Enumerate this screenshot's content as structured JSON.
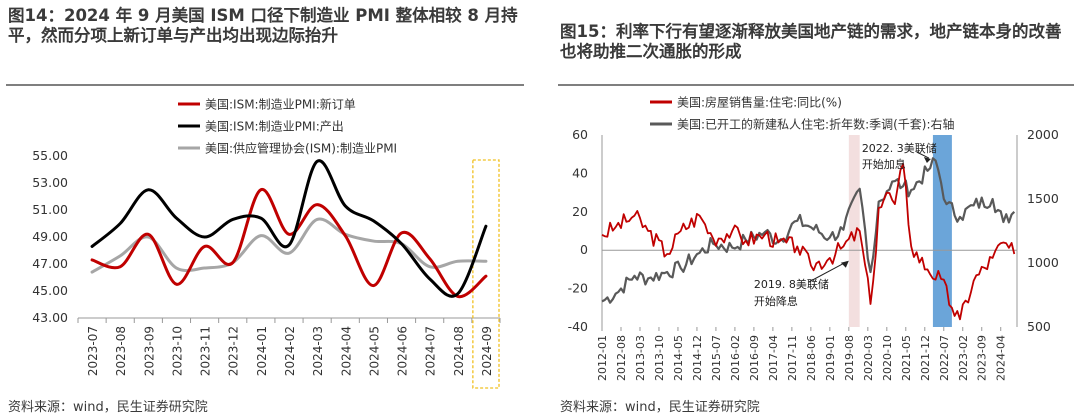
{
  "charts": [
    {
      "title": "图14：2024 年 9 月美国 ISM 口径下制造业 PMI 整体相较 8 月持平，然而分项上新订单与产出均出现边际抬升",
      "source": "资料来源：wind，民生证券研究院",
      "chart_data": {
        "type": "line",
        "categories": [
          "2023-07",
          "2023-08",
          "2023-09",
          "2023-10",
          "2023-11",
          "2023-12",
          "2024-01",
          "2024-02",
          "2024-03",
          "2024-04",
          "2024-05",
          "2024-06",
          "2024-07",
          "2024-08",
          "2024-09"
        ],
        "y_ticks": [
          "55.00",
          "53.00",
          "51.00",
          "49.00",
          "47.00",
          "45.00",
          "43.00"
        ],
        "ylim": [
          43,
          55
        ],
        "legend": "top-center",
        "highlight_category": "2024-09",
        "series": [
          {
            "name": "美国:ISM:制造业PMI:新订单",
            "color": "#c00000",
            "values": [
              47.3,
              46.8,
              49.2,
              45.5,
              48.3,
              47.1,
              52.5,
              49.2,
              51.4,
              49.1,
              45.4,
              49.3,
              47.4,
              44.6,
              46.1
            ]
          },
          {
            "name": "美国:ISM:制造业PMI:产出",
            "color": "#000000",
            "values": [
              48.3,
              50.0,
              52.5,
              50.4,
              49.0,
              50.3,
              50.4,
              48.4,
              54.6,
              51.3,
              50.2,
              48.5,
              45.9,
              44.8,
              49.8
            ]
          },
          {
            "name": "美国:供应管理协会(ISM):制造业PMI",
            "color": "#a6a6a6",
            "values": [
              46.4,
              47.6,
              49.0,
              46.7,
              46.7,
              47.1,
              49.1,
              47.8,
              50.3,
              49.2,
              48.7,
              48.5,
              46.8,
              47.2,
              47.2
            ]
          }
        ]
      }
    },
    {
      "title": "图15：利率下行有望逐渐释放美国地产链的需求，地产链本身的改善也将助推二次通胀的形成",
      "source": "资料来源：wind，民生证券研究院",
      "chart_data": {
        "type": "line",
        "x_ticks": [
          "2012-01",
          "2012-08",
          "2013-03",
          "2013-10",
          "2014-05",
          "2014-12",
          "2015-07",
          "2016-02",
          "2016-09",
          "2017-04",
          "2017-11",
          "2018-06",
          "2019-01",
          "2019-08",
          "2020-03",
          "2020-10",
          "2021-05",
          "2021-12",
          "2022-07",
          "2023-02",
          "2023-09",
          "2024-04"
        ],
        "y_left_ticks": [
          "60",
          "40",
          "20",
          "0",
          "-20",
          "-40"
        ],
        "y_left_lim": [
          -40,
          60
        ],
        "y_right_ticks": [
          "2000",
          "1500",
          "1000",
          "500"
        ],
        "y_right_lim": [
          500,
          2000
        ],
        "legend": "top-left",
        "bands": [
          {
            "from": "2019-08",
            "to": "2019-12",
            "color": "#f2dcdb"
          },
          {
            "from": "2022-03",
            "to": "2022-10",
            "color": "#5b9bd5"
          }
        ],
        "annotations": [
          {
            "text_lines": [
              "2022. 3美联储",
              "开始加息"
            ],
            "at": "2022-03"
          },
          {
            "text_lines": [
              "2019. 8美联储",
              "开始降息"
            ],
            "at": "2019-08"
          }
        ],
        "series": [
          {
            "name": "美国:房屋销售量:住宅:同比(%)",
            "axis": "left",
            "color": "#c00000",
            "x": [
              "2012-01",
              "2012-06",
              "2013-01",
              "2013-06",
              "2014-01",
              "2014-06",
              "2015-01",
              "2015-06",
              "2016-01",
              "2016-06",
              "2017-01",
              "2017-06",
              "2018-01",
              "2018-06",
              "2019-01",
              "2019-06",
              "2019-12",
              "2020-04",
              "2020-05",
              "2020-07",
              "2020-10",
              "2021-01",
              "2021-04",
              "2021-07",
              "2022-01",
              "2022-06",
              "2022-10",
              "2023-01",
              "2023-06",
              "2024-01",
              "2024-05",
              "2024-09"
            ],
            "values": [
              8,
              12,
              18,
              10,
              -2,
              10,
              18,
              6,
              10,
              5,
              8,
              4,
              2,
              -8,
              -4,
              2,
              10,
              -28,
              -16,
              22,
              30,
              24,
              45,
              2,
              -10,
              -15,
              -30,
              -36,
              -16,
              -4,
              4,
              -2
            ]
          },
          {
            "name": "美国:已开工的新建私人住宅:折年数:季调(千套):右轴",
            "axis": "right",
            "color": "#595959",
            "x": [
              "2012-01",
              "2012-06",
              "2013-01",
              "2013-06",
              "2014-01",
              "2014-06",
              "2015-01",
              "2015-06",
              "2016-01",
              "2016-06",
              "2017-01",
              "2017-06",
              "2018-01",
              "2018-06",
              "2019-01",
              "2019-06",
              "2019-12",
              "2020-04",
              "2020-05",
              "2020-07",
              "2020-10",
              "2021-01",
              "2021-04",
              "2021-07",
              "2022-01",
              "2022-04",
              "2022-08",
              "2023-01",
              "2023-06",
              "2024-01",
              "2024-05",
              "2024-09"
            ],
            "values": [
              700,
              760,
              900,
              880,
              930,
              960,
              1080,
              1150,
              1120,
              1180,
              1240,
              1170,
              1330,
              1280,
              1200,
              1260,
              1580,
              930,
              1050,
              1480,
              1560,
              1640,
              1600,
              1570,
              1720,
              1800,
              1460,
              1360,
              1450,
              1500,
              1320,
              1400
            ]
          }
        ]
      }
    }
  ]
}
